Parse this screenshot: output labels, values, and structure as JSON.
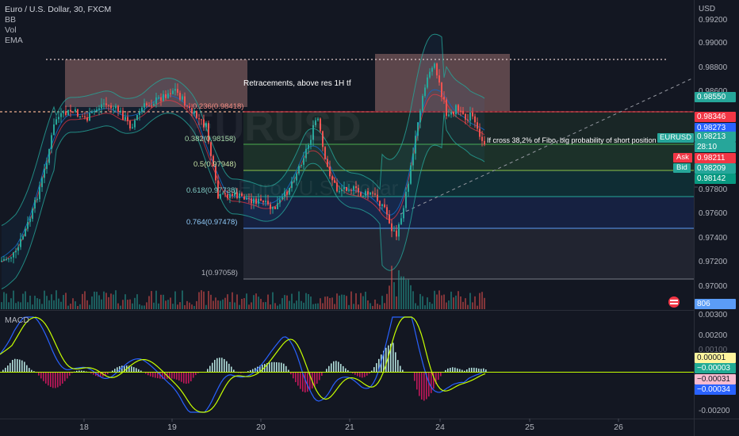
{
  "legend": {
    "symbol": "Euro / U.S. Dollar, 30, FXCM",
    "bb": "BB",
    "vol": "Vol",
    "ema": "EMA",
    "macd": "MACD"
  },
  "watermark": {
    "ticker": "EURUSD",
    "name": "Euro / U.S. Dollar"
  },
  "currency": "USD",
  "price_axis": [
    "0.99200",
    "0.99000",
    "0.98800",
    "0.98600",
    "0.97800",
    "0.97600",
    "0.97400",
    "0.97200",
    "0.97000"
  ],
  "price_tags": [
    {
      "text": "0.98550",
      "bg": "#26a69a",
      "fg": "#ffffff"
    },
    {
      "text": "0.98346",
      "bg": "#f23645",
      "fg": "#ffffff"
    },
    {
      "text": "0.98273",
      "bg": "#2962ff",
      "fg": "#ffffff"
    },
    {
      "text": "0.98213",
      "bg": "#26a69a",
      "fg": "#ffffff"
    },
    {
      "text": "28:10",
      "bg": "#26a69a",
      "fg": "#ffffff"
    },
    {
      "text": "0.98211",
      "bg": "#f23645",
      "fg": "#ffffff"
    },
    {
      "text": "0.98209",
      "bg": "#26a69a",
      "fg": "#ffffff"
    },
    {
      "text": "0.98142",
      "bg": "#089981",
      "fg": "#ffffff"
    },
    {
      "text": "806",
      "bg": "#5b9cf6",
      "fg": "#ffffff"
    }
  ],
  "ticker_badge": "EURUSD",
  "ask_label": "Ask",
  "bid_label": "Bid",
  "macd_axis": [
    "0.00300",
    "0.00200",
    "0.00100",
    "-0.00200"
  ],
  "macd_tags": [
    {
      "text": "0.00001",
      "bg": "#fff59d",
      "fg": "#131722"
    },
    {
      "text": "−0.00003",
      "bg": "#22ab94",
      "fg": "#ffffff"
    },
    {
      "text": "−0.00031",
      "bg": "#f8bbd0",
      "fg": "#131722"
    },
    {
      "text": "−0.00034",
      "bg": "#2962ff",
      "fg": "#ffffff"
    }
  ],
  "time_axis": [
    "18",
    "19",
    "20",
    "21",
    "24",
    "25",
    "26"
  ],
  "fib_levels": [
    {
      "label": "0.236(0.98418)"
    },
    {
      "label": "0.382(0.98158)"
    },
    {
      "label": "0.5(0.97948)"
    },
    {
      "label": "0.618(0.97738)"
    },
    {
      "label": "0.764(0.97478)"
    },
    {
      "label": "1(0.97058)"
    }
  ],
  "annotations": {
    "retracements": "Retracements, above res 1H tf",
    "cross_note": "If cross 38,2% of Fibo, big probability of short position"
  },
  "colors": {
    "up": "#26a69a",
    "down": "#ef5350",
    "background": "#131722",
    "bb_band": "#2196f3",
    "ema": "#f23645",
    "macd_line": "#2962ff",
    "signal_line": "#c6ff00"
  }
}
